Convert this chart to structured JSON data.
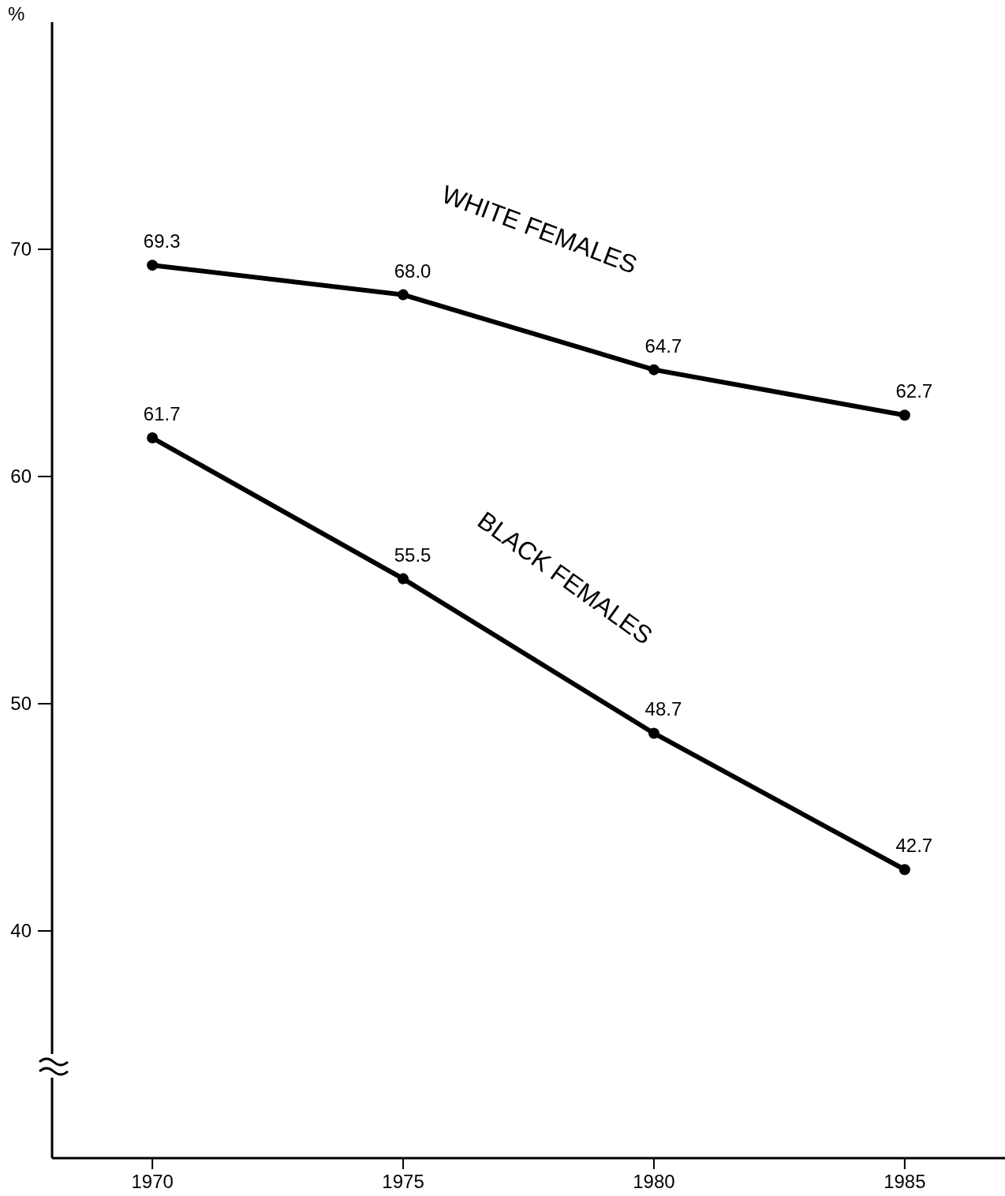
{
  "chart_data": {
    "type": "line",
    "ylabel": "%",
    "x": [
      1970,
      1975,
      1980,
      1985
    ],
    "series": [
      {
        "name": "WHITE FEMALES",
        "color": "#000000",
        "values": [
          69.3,
          68.0,
          64.7,
          62.7
        ],
        "value_labels": [
          "69.3",
          "68.0",
          "64.7",
          "62.7"
        ]
      },
      {
        "name": "BLACK FEMALES",
        "color": "#000000",
        "values": [
          61.7,
          55.5,
          48.7,
          42.7
        ],
        "value_labels": [
          "61.7",
          "55.5",
          "48.7",
          "42.7"
        ]
      }
    ],
    "xlim": [
      1968,
      1987
    ],
    "xticks": [
      1970,
      1975,
      1980,
      1985
    ],
    "ylim": [
      30,
      80
    ],
    "yticks": [
      40,
      50,
      60,
      70
    ],
    "marker": "circle",
    "line_style": "solid"
  }
}
